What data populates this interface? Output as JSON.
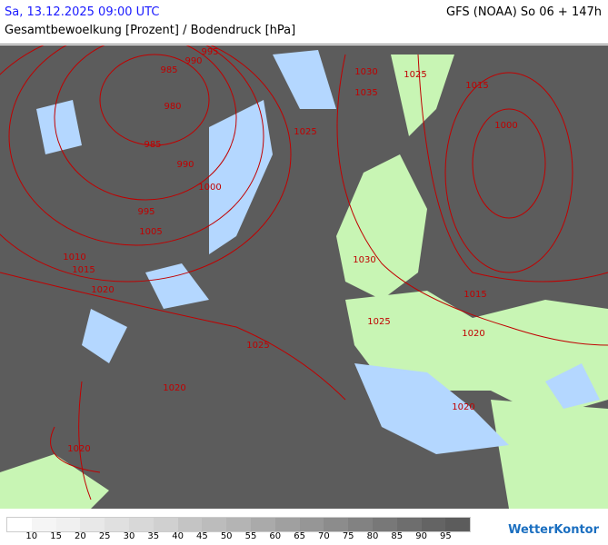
{
  "header": {
    "datetime": "Sa, 13.12.2025 09:00 UTC",
    "model_run": "GFS (NOAA) So 06 + 147h",
    "subtitle": "Gesamtbewoelkung [Prozent] / Bodendruck [hPa]"
  },
  "colors": {
    "land": "#c8f5b4",
    "sea": "#b4d7ff",
    "cloud_dark": "#5c5c5c",
    "isobar": "#c00000"
  },
  "legend": {
    "labels": [
      "10",
      "15",
      "20",
      "25",
      "30",
      "35",
      "40",
      "45",
      "50",
      "55",
      "60",
      "65",
      "70",
      "75",
      "80",
      "85",
      "90",
      "95"
    ],
    "swatches": [
      "#ffffff",
      "#f5f5f5",
      "#f0f0f0",
      "#e8e8e8",
      "#e0e0e0",
      "#d8d8d8",
      "#d0d0d0",
      "#c4c4c4",
      "#bcbcbc",
      "#b4b4b4",
      "#aaaaaa",
      "#a0a0a0",
      "#969696",
      "#8c8c8c",
      "#828282",
      "#787878",
      "#6e6e6e",
      "#646464",
      "#5c5c5c"
    ]
  },
  "isobar_labels": [
    "995",
    "990",
    "985",
    "980",
    "985",
    "990",
    "1000",
    "995",
    "1005",
    "1010",
    "1015",
    "1020",
    "1030",
    "1035",
    "1025",
    "1015",
    "1000",
    "1025",
    "1030",
    "1025",
    "1015",
    "1020",
    "1025",
    "1020",
    "1020",
    "1020"
  ],
  "logo": "WetterKontor"
}
